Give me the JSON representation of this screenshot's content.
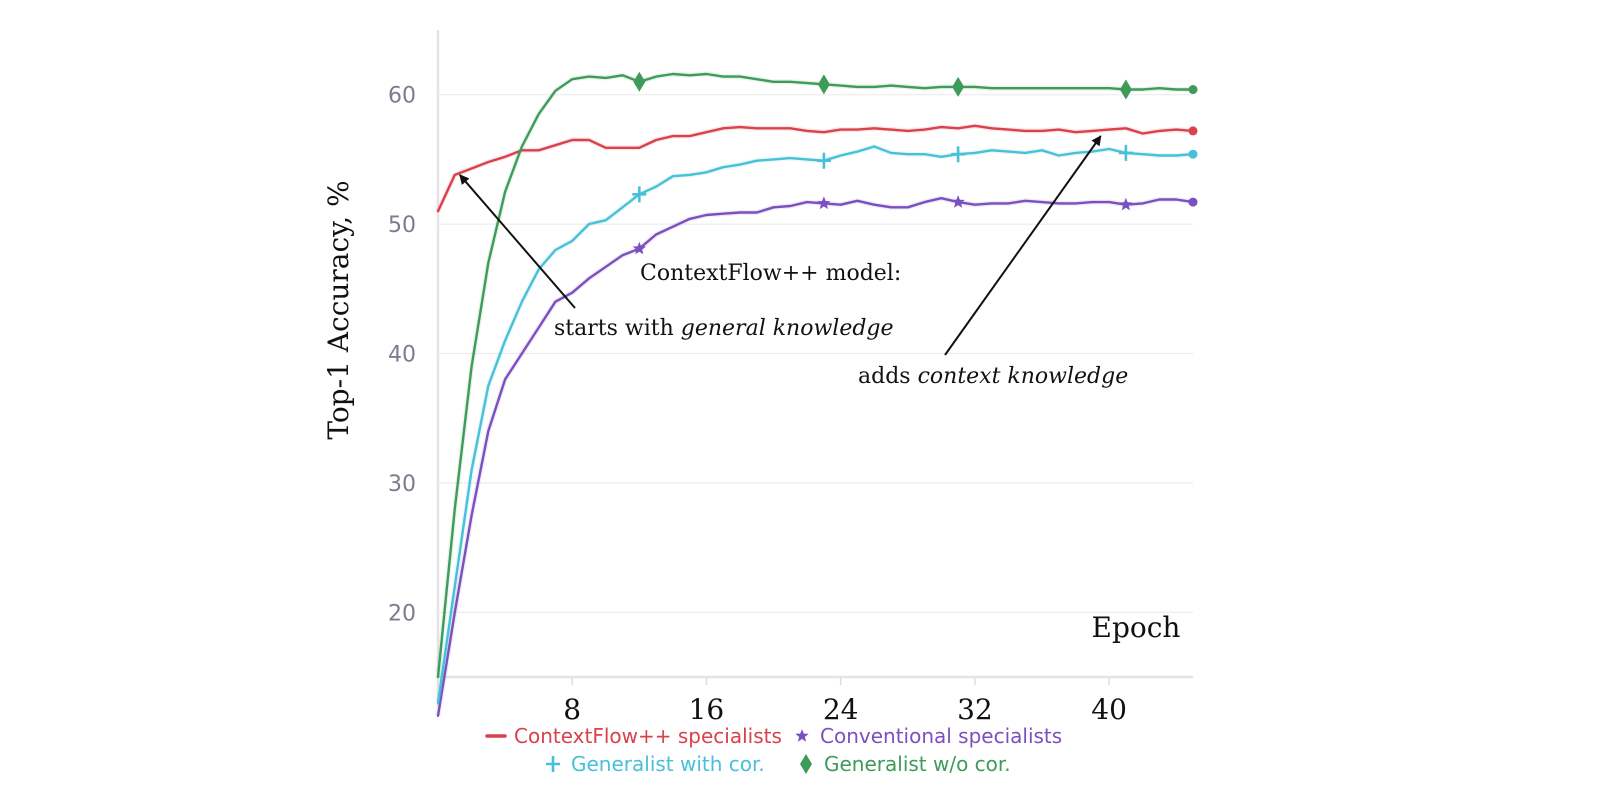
{
  "chart_data": {
    "type": "line",
    "title": "",
    "xlabel": "Epoch",
    "ylabel": "Top-1 Accuracy, %",
    "xlim": [
      0,
      45
    ],
    "ylim": [
      15,
      65
    ],
    "xticks": [
      8,
      16,
      24,
      32,
      40
    ],
    "xtick_labels": [
      "8",
      "16",
      "24",
      "32",
      "40"
    ],
    "yticks": [
      20,
      30,
      40,
      50,
      60
    ],
    "ytick_labels": [
      "20",
      "30",
      "40",
      "50",
      "60"
    ],
    "grid": true,
    "annotations": {
      "heading": "ContextFlow++ model:",
      "left_prefix": "starts with ",
      "left_em": "general knowledge",
      "right_prefix": "adds ",
      "right_em": "context knowledge",
      "left_target": [
        1.3,
        53.8
      ],
      "right_target": [
        39.5,
        56.8
      ]
    },
    "series": [
      {
        "name": "ContextFlow++ specialists",
        "color": "#d9414b",
        "marker": "dash",
        "x": [
          0,
          1,
          2,
          3,
          4,
          5,
          6,
          7,
          8,
          9,
          10,
          11,
          12,
          13,
          14,
          15,
          16,
          17,
          18,
          19,
          20,
          21,
          22,
          23,
          24,
          25,
          26,
          27,
          28,
          29,
          30,
          31,
          32,
          33,
          34,
          35,
          36,
          37,
          38,
          39,
          40,
          41,
          42,
          43,
          44,
          45
        ],
        "y": [
          51.0,
          53.8,
          54.3,
          54.8,
          55.2,
          55.7,
          55.7,
          56.1,
          56.5,
          56.5,
          55.9,
          55.9,
          55.9,
          56.5,
          56.8,
          56.8,
          57.1,
          57.4,
          57.5,
          57.4,
          57.4,
          57.4,
          57.2,
          57.1,
          57.3,
          57.3,
          57.4,
          57.3,
          57.2,
          57.3,
          57.5,
          57.4,
          57.6,
          57.4,
          57.3,
          57.2,
          57.2,
          57.3,
          57.1,
          57.2,
          57.3,
          57.4,
          57.0,
          57.2,
          57.3,
          57.2
        ],
        "marker_x": [],
        "end_dot": true
      },
      {
        "name": "Conventional specialists",
        "color": "#7b4fc0",
        "marker": "star",
        "x": [
          0,
          1,
          2,
          3,
          4,
          5,
          6,
          7,
          8,
          9,
          10,
          11,
          12,
          13,
          14,
          15,
          16,
          17,
          18,
          19,
          20,
          21,
          22,
          23,
          24,
          25,
          26,
          27,
          28,
          29,
          30,
          31,
          32,
          33,
          34,
          35,
          36,
          37,
          38,
          39,
          40,
          41,
          42,
          43,
          44,
          45
        ],
        "y": [
          12.0,
          20.0,
          27.5,
          34.0,
          38.0,
          40.0,
          42.0,
          44.0,
          44.7,
          45.8,
          46.7,
          47.6,
          48.1,
          49.2,
          49.8,
          50.4,
          50.7,
          50.8,
          50.9,
          50.9,
          51.3,
          51.4,
          51.7,
          51.6,
          51.5,
          51.8,
          51.5,
          51.3,
          51.3,
          51.7,
          52.0,
          51.7,
          51.5,
          51.6,
          51.6,
          51.8,
          51.7,
          51.6,
          51.6,
          51.7,
          51.7,
          51.5,
          51.6,
          51.9,
          51.9,
          51.7
        ],
        "marker_x": [
          12,
          23,
          31,
          41
        ],
        "end_dot": true
      },
      {
        "name": "Generalist with cor.",
        "color": "#48c0d8",
        "marker": "plus",
        "x": [
          0,
          1,
          2,
          3,
          4,
          5,
          6,
          7,
          8,
          9,
          10,
          11,
          12,
          13,
          14,
          15,
          16,
          17,
          18,
          19,
          20,
          21,
          22,
          23,
          24,
          25,
          26,
          27,
          28,
          29,
          30,
          31,
          32,
          33,
          34,
          35,
          36,
          37,
          38,
          39,
          40,
          41,
          42,
          43,
          44,
          45
        ],
        "y": [
          13.0,
          22.0,
          31.0,
          37.5,
          41.0,
          44.0,
          46.5,
          48.0,
          48.7,
          50.0,
          50.3,
          51.3,
          52.3,
          52.9,
          53.7,
          53.8,
          54.0,
          54.4,
          54.6,
          54.9,
          55.0,
          55.1,
          55.0,
          54.9,
          55.3,
          55.6,
          56.0,
          55.5,
          55.4,
          55.4,
          55.2,
          55.4,
          55.5,
          55.7,
          55.6,
          55.5,
          55.7,
          55.3,
          55.5,
          55.6,
          55.8,
          55.5,
          55.4,
          55.3,
          55.3,
          55.4
        ],
        "marker_x": [
          12,
          23,
          31,
          41
        ],
        "end_dot": true
      },
      {
        "name": "Generalist w/o cor.",
        "color": "#3e9b5a",
        "marker": "diamond",
        "x": [
          0,
          1,
          2,
          3,
          4,
          5,
          6,
          7,
          8,
          9,
          10,
          11,
          12,
          13,
          14,
          15,
          16,
          17,
          18,
          19,
          20,
          21,
          22,
          23,
          24,
          25,
          26,
          27,
          28,
          29,
          30,
          31,
          32,
          33,
          34,
          35,
          36,
          37,
          38,
          39,
          40,
          41,
          42,
          43,
          44,
          45
        ],
        "y": [
          15.0,
          28.0,
          39.0,
          47.0,
          52.5,
          56.0,
          58.5,
          60.3,
          61.2,
          61.4,
          61.3,
          61.5,
          61.0,
          61.4,
          61.6,
          61.5,
          61.6,
          61.4,
          61.4,
          61.2,
          61.0,
          61.0,
          60.9,
          60.8,
          60.7,
          60.6,
          60.6,
          60.7,
          60.6,
          60.5,
          60.6,
          60.6,
          60.6,
          60.5,
          60.5,
          60.5,
          60.5,
          60.5,
          60.5,
          60.5,
          60.5,
          60.4,
          60.4,
          60.5,
          60.4,
          60.4
        ],
        "marker_x": [
          12,
          23,
          31,
          41
        ],
        "end_dot": true
      }
    ],
    "legend": {
      "position": "bottom",
      "rows": [
        [
          "ContextFlow++ specialists",
          "Conventional specialists"
        ],
        [
          "Generalist with cor.",
          "Generalist w/o cor."
        ]
      ]
    }
  }
}
